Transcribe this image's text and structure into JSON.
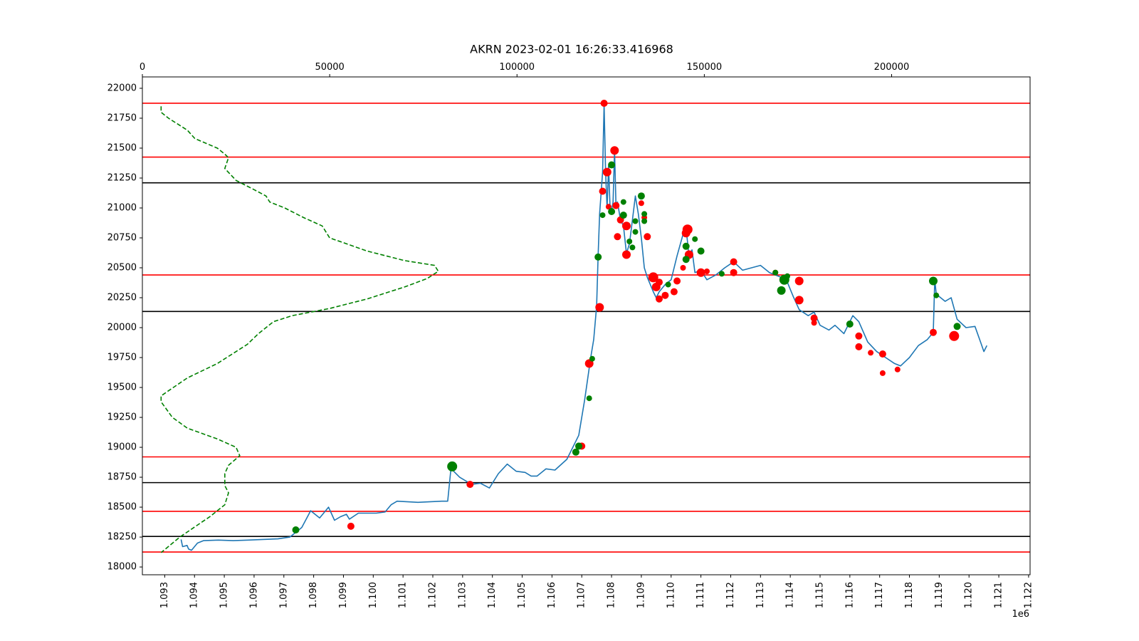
{
  "chart_data": {
    "type": "line",
    "title": "AKRN 2023-02-01 16:26:33.416968",
    "x_multiplier_label": "1e6",
    "xlim": [
      1.09225,
      1.12205
    ],
    "ylim": [
      17935,
      22095
    ],
    "top_xlim": [
      0,
      236958
    ],
    "x_ticks": [
      1.093,
      1.094,
      1.095,
      1.096,
      1.097,
      1.098,
      1.099,
      1.1,
      1.101,
      1.102,
      1.103,
      1.104,
      1.105,
      1.106,
      1.107,
      1.108,
      1.109,
      1.11,
      1.111,
      1.112,
      1.113,
      1.114,
      1.115,
      1.116,
      1.117,
      1.118,
      1.119,
      1.12,
      1.121,
      1.122
    ],
    "x_tick_labels": [
      "1.093",
      "1.094",
      "1.095",
      "1.096",
      "1.097",
      "1.098",
      "1.099",
      "1.100",
      "1.101",
      "1.102",
      "1.103",
      "1.104",
      "1.105",
      "1.106",
      "1.107",
      "1.108",
      "1.109",
      "1.110",
      "1.111",
      "1.112",
      "1.113",
      "1.114",
      "1.115",
      "1.116",
      "1.117",
      "1.118",
      "1.119",
      "1.120",
      "1.121",
      "1.122"
    ],
    "y_ticks": [
      18000,
      18250,
      18500,
      18750,
      19000,
      19250,
      19500,
      19750,
      20000,
      20250,
      20500,
      20750,
      21000,
      21250,
      21500,
      21750,
      22000
    ],
    "y_tick_labels": [
      "18000",
      "18250",
      "18500",
      "18750",
      "19000",
      "19250",
      "19500",
      "19750",
      "20000",
      "20250",
      "20500",
      "20750",
      "21000",
      "21250",
      "21500",
      "21750",
      "22000"
    ],
    "top_x_ticks": [
      0,
      50000,
      100000,
      150000,
      200000
    ],
    "top_x_tick_labels": [
      "0",
      "50000",
      "100000",
      "150000",
      "200000"
    ],
    "hlines": [
      {
        "y": 21875,
        "color": "#ff0000"
      },
      {
        "y": 21425,
        "color": "#ff0000"
      },
      {
        "y": 21210,
        "color": "#000000"
      },
      {
        "y": 20440,
        "color": "#ff0000"
      },
      {
        "y": 20135,
        "color": "#000000"
      },
      {
        "y": 18920,
        "color": "#ff0000"
      },
      {
        "y": 18705,
        "color": "#000000"
      },
      {
        "y": 18465,
        "color": "#ff0000"
      },
      {
        "y": 18255,
        "color": "#000000"
      },
      {
        "y": 18125,
        "color": "#ff0000"
      }
    ],
    "series": [
      {
        "style": "line",
        "color": "#1f77b4",
        "x": [
          1.09355,
          1.0936,
          1.09375,
          1.0938,
          1.0939,
          1.0941,
          1.0943,
          1.0948,
          1.0953,
          1.0958,
          1.0963,
          1.0968,
          1.0972,
          1.09745,
          1.0976,
          1.0979,
          1.0982,
          1.0985,
          1.0987,
          1.0989,
          1.0991,
          1.0992,
          1.0995,
          1.0998,
          1.1001,
          1.1004,
          1.1006,
          1.1008,
          1.1015,
          1.1023,
          1.1025,
          1.1026,
          1.10265,
          1.1027,
          1.1029,
          1.1033,
          1.1036,
          1.1039,
          1.1042,
          1.1045,
          1.1048,
          1.1051,
          1.1053,
          1.1055,
          1.1058,
          1.1061,
          1.1065,
          1.1067,
          1.1069,
          1.1071,
          1.1073,
          1.1074,
          1.1075,
          1.10755,
          1.1076,
          1.1077,
          1.10775,
          1.1078,
          1.10785,
          1.1079,
          1.10795,
          1.108,
          1.10805,
          1.1081,
          1.10815,
          1.1082,
          1.1083,
          1.1084,
          1.1085,
          1.1086,
          1.1087,
          1.1088,
          1.1089,
          1.109,
          1.1091,
          1.1092,
          1.1094,
          1.1095,
          1.1096,
          1.1098,
          1.11,
          1.1102,
          1.1104,
          1.1105,
          1.1106,
          1.1107,
          1.1108,
          1.111,
          1.1112,
          1.1115,
          1.1118,
          1.1121,
          1.1124,
          1.1127,
          1.113,
          1.1133,
          1.1135,
          1.1137,
          1.1139,
          1.1141,
          1.1143,
          1.1146,
          1.1148,
          1.115,
          1.1153,
          1.1155,
          1.1158,
          1.1161,
          1.1163,
          1.1166,
          1.1169,
          1.1172,
          1.1175,
          1.1177,
          1.118,
          1.1183,
          1.1186,
          1.1188,
          1.11885,
          1.1189,
          1.1192,
          1.1194,
          1.1196,
          1.1199,
          1.1202,
          1.1204,
          1.1205,
          1.1206
        ],
        "y": [
          18230,
          18170,
          18180,
          18150,
          18140,
          18200,
          18220,
          18225,
          18220,
          18225,
          18230,
          18235,
          18250,
          18300,
          18330,
          18470,
          18410,
          18500,
          18390,
          18420,
          18440,
          18400,
          18450,
          18450,
          18450,
          18460,
          18520,
          18550,
          18540,
          18550,
          18550,
          18800,
          18830,
          18800,
          18750,
          18690,
          18700,
          18660,
          18780,
          18860,
          18800,
          18790,
          18760,
          18760,
          18820,
          18810,
          18900,
          19000,
          19100,
          19400,
          19750,
          19900,
          20180,
          20600,
          20950,
          21300,
          21870,
          21300,
          21000,
          21350,
          21000,
          20980,
          21050,
          21480,
          21020,
          21050,
          20900,
          20850,
          20620,
          20700,
          20900,
          21100,
          20950,
          20750,
          20500,
          20420,
          20300,
          20250,
          20300,
          20360,
          20400,
          20600,
          20780,
          20830,
          20600,
          20650,
          20460,
          20480,
          20400,
          20440,
          20500,
          20550,
          20480,
          20500,
          20520,
          20460,
          20440,
          20420,
          20380,
          20260,
          20150,
          20100,
          20130,
          20020,
          19980,
          20020,
          19950,
          20100,
          20050,
          19880,
          19800,
          19750,
          19700,
          19680,
          19750,
          19850,
          19900,
          19960,
          20400,
          20280,
          20220,
          20250,
          20070,
          20000,
          20010,
          19870,
          19800,
          19850
        ]
      },
      {
        "style": "dashed",
        "color": "#008000",
        "x_axis": "top",
        "x": [
          5000,
          5000,
          7000,
          12000,
          14000,
          20000,
          22000,
          23000,
          22000,
          25000,
          30000,
          33000,
          34000,
          38000,
          43000,
          48000,
          50000,
          60000,
          70000,
          78000,
          79000,
          76000,
          70000,
          60000,
          50000,
          40000,
          35000,
          31000,
          28000,
          24000,
          20000,
          12000,
          5000,
          5000,
          8000,
          12000,
          20000,
          25000,
          26000,
          23000,
          22000,
          22000,
          23000,
          22000,
          18000,
          10000,
          5000
        ],
        "y": [
          21850,
          21800,
          21750,
          21650,
          21580,
          21500,
          21450,
          21420,
          21330,
          21230,
          21150,
          21100,
          21050,
          21000,
          20920,
          20850,
          20750,
          20640,
          20560,
          20520,
          20470,
          20410,
          20340,
          20240,
          20160,
          20100,
          20050,
          19950,
          19860,
          19780,
          19700,
          19580,
          19430,
          19380,
          19250,
          19160,
          19070,
          19000,
          18930,
          18850,
          18780,
          18680,
          18620,
          18520,
          18420,
          18250,
          18120
        ]
      },
      {
        "style": "points",
        "name": "red",
        "color": "#ff0000",
        "points": [
          [
            1.09925,
            18340,
            5
          ],
          [
            1.10325,
            18690,
            5
          ],
          [
            1.107,
            19010,
            5
          ],
          [
            1.10725,
            19700,
            6
          ],
          [
            1.1076,
            20170,
            6
          ],
          [
            1.1077,
            21140,
            5
          ],
          [
            1.10775,
            21875,
            5
          ],
          [
            1.10785,
            21300,
            6
          ],
          [
            1.1079,
            21010,
            4
          ],
          [
            1.1081,
            21480,
            6
          ],
          [
            1.10815,
            21020,
            5
          ],
          [
            1.1083,
            20900,
            5
          ],
          [
            1.1082,
            20760,
            5
          ],
          [
            1.1085,
            20850,
            6
          ],
          [
            1.1085,
            20610,
            6
          ],
          [
            1.109,
            21040,
            4
          ],
          [
            1.1091,
            20920,
            4
          ],
          [
            1.1092,
            20760,
            5
          ],
          [
            1.1094,
            20420,
            7
          ],
          [
            1.1095,
            20340,
            6
          ],
          [
            1.1096,
            20380,
            5
          ],
          [
            1.1096,
            20240,
            5
          ],
          [
            1.1098,
            20270,
            5
          ],
          [
            1.1101,
            20300,
            5
          ],
          [
            1.1102,
            20390,
            5
          ],
          [
            1.1104,
            20500,
            4
          ],
          [
            1.11055,
            20820,
            7
          ],
          [
            1.1105,
            20790,
            6
          ],
          [
            1.1106,
            20610,
            6
          ],
          [
            1.111,
            20460,
            6
          ],
          [
            1.1112,
            20470,
            4
          ],
          [
            1.1121,
            20550,
            5
          ],
          [
            1.1121,
            20460,
            5
          ],
          [
            1.1135,
            20460,
            4
          ],
          [
            1.1143,
            20390,
            6
          ],
          [
            1.1143,
            20230,
            6
          ],
          [
            1.1148,
            20080,
            5
          ],
          [
            1.1148,
            20040,
            4
          ],
          [
            1.1163,
            19930,
            5
          ],
          [
            1.1163,
            19840,
            5
          ],
          [
            1.1167,
            19790,
            4
          ],
          [
            1.1171,
            19780,
            5
          ],
          [
            1.1171,
            19620,
            4
          ],
          [
            1.1176,
            19650,
            4
          ],
          [
            1.1188,
            19960,
            5
          ],
          [
            1.1195,
            19930,
            7
          ]
        ]
      },
      {
        "style": "points",
        "name": "green",
        "color": "#008000",
        "points": [
          [
            1.0974,
            18310,
            5
          ],
          [
            1.10265,
            18840,
            7
          ],
          [
            1.1068,
            18960,
            5
          ],
          [
            1.1069,
            19010,
            5
          ],
          [
            1.10725,
            19410,
            4
          ],
          [
            1.10735,
            19740,
            4
          ],
          [
            1.10755,
            20590,
            5
          ],
          [
            1.1077,
            20940,
            4
          ],
          [
            1.108,
            21360,
            5
          ],
          [
            1.108,
            20970,
            5
          ],
          [
            1.1084,
            21050,
            4
          ],
          [
            1.1084,
            20940,
            5
          ],
          [
            1.1086,
            20720,
            4
          ],
          [
            1.1087,
            20670,
            4
          ],
          [
            1.1088,
            20890,
            4
          ],
          [
            1.1088,
            20800,
            4
          ],
          [
            1.109,
            21100,
            5
          ],
          [
            1.1091,
            20950,
            4
          ],
          [
            1.1091,
            20890,
            4
          ],
          [
            1.1099,
            20360,
            4
          ],
          [
            1.1105,
            20570,
            5
          ],
          [
            1.1105,
            20680,
            5
          ],
          [
            1.1108,
            20740,
            4
          ],
          [
            1.111,
            20640,
            5
          ],
          [
            1.1117,
            20450,
            4
          ],
          [
            1.1135,
            20460,
            4
          ],
          [
            1.1137,
            20310,
            6
          ],
          [
            1.1138,
            20400,
            7
          ],
          [
            1.1139,
            20430,
            4
          ],
          [
            1.116,
            20030,
            5
          ],
          [
            1.1188,
            20390,
            6
          ],
          [
            1.1189,
            20270,
            4
          ],
          [
            1.1196,
            20010,
            5
          ]
        ]
      }
    ]
  }
}
